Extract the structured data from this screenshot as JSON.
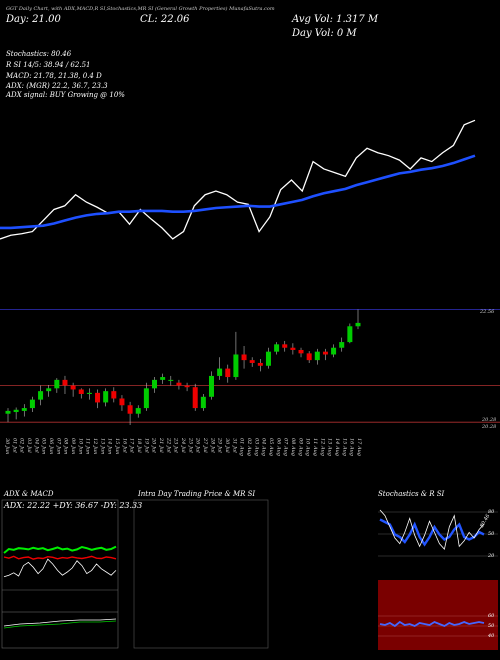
{
  "header": {
    "ticker_line": "GGT Daily Chart, with ADX,MACD,R  SI,Stochastics,MR  SI (General Growth Properties) MunafaSutra.com",
    "day_label": "Day: 21.00",
    "close_label": "CL: 22.06",
    "avg_vol": "Avg Vol: 1.317 M",
    "day_vol": "Day Vol: 0  M",
    "stochastics": "Stochastics: 80.46",
    "rsi": "R  SI 14/5: 38.94  / 62.51",
    "macd": "MACD: 21.78, 21.38, 0.4  D",
    "adx": "ADX:                  (MGR) 22.2,  36.7,  23.3",
    "adx_signal": "ADX  signal:                    BUY Growing @ 10%"
  },
  "colors": {
    "background": "#000000",
    "price_line": "#ffffff",
    "ma_line": "#1e50ff",
    "bull": "#00cc00",
    "bear": "#ee0000",
    "level_line": "#b03030",
    "blue_level": "#3030c0"
  },
  "price_panel": {
    "right_label_top": "22.56",
    "right_labels_bottom": [
      "20.28",
      "20.28"
    ]
  },
  "x_axis_dates": [
    "30 Jun",
    "01 Jul",
    "02 Jul",
    "03 Jul",
    "04 Jul",
    "05 Jun",
    "06 Jun",
    "07 Jun",
    "08 Jun",
    "09 Jun",
    "10 Jun",
    "11 Jun",
    "12 Jun",
    "13 Jun",
    "14 Jun",
    "15 Jun",
    "16 Jul",
    "17 Jul",
    "18 Jul",
    "19 Jul",
    "20 Jul",
    "21 Jul",
    "22 Jul",
    "23 Jul",
    "24 Jul",
    "25 Jul",
    "26 Jul",
    "27 Jul",
    "28 Jul",
    "29 Jul",
    "30 Jul",
    "31 Jul",
    "01 Aug",
    "02 Aug",
    "03 Aug",
    "04 Aug",
    "05 Aug",
    "06 Aug",
    "07 Aug",
    "08 Aug",
    "09 Aug",
    "10 Aug",
    "11 Aug",
    "12 Aug",
    "13 Aug",
    "14 Aug",
    "15 Aug",
    "16 Aug",
    "17 Aug"
  ],
  "panels": {
    "adx_title": "ADX  & MACD",
    "adx_values": "ADX: 22.22  +DY: 36.67  -DY: 23.33",
    "intra_title": "Intra  Day Trading Price  & MR              SI",
    "stoch_title": "Stochastics & R              SI",
    "stoch_levels": [
      "80",
      "50",
      "20"
    ],
    "rsi_levels": [
      "60",
      "50",
      "40"
    ],
    "stoch_side_text": "80.46"
  },
  "chart_data": {
    "type": "candlestick",
    "candles": [
      {
        "o": 20.45,
        "c": 20.5,
        "h": 20.55,
        "l": 20.3
      },
      {
        "o": 20.48,
        "c": 20.52,
        "h": 20.56,
        "l": 20.35
      },
      {
        "o": 20.5,
        "c": 20.55,
        "h": 20.62,
        "l": 20.4
      },
      {
        "o": 20.55,
        "c": 20.7,
        "h": 20.75,
        "l": 20.48
      },
      {
        "o": 20.7,
        "c": 20.85,
        "h": 20.95,
        "l": 20.6
      },
      {
        "o": 20.85,
        "c": 20.9,
        "h": 20.96,
        "l": 20.75
      },
      {
        "o": 20.9,
        "c": 21.05,
        "h": 21.08,
        "l": 20.82
      },
      {
        "o": 21.05,
        "c": 20.95,
        "h": 21.12,
        "l": 20.8
      },
      {
        "o": 20.95,
        "c": 20.88,
        "h": 21.0,
        "l": 20.75
      },
      {
        "o": 20.88,
        "c": 20.8,
        "h": 20.9,
        "l": 20.72
      },
      {
        "o": 20.8,
        "c": 20.82,
        "h": 20.9,
        "l": 20.7
      },
      {
        "o": 20.82,
        "c": 20.65,
        "h": 20.88,
        "l": 20.55
      },
      {
        "o": 20.65,
        "c": 20.85,
        "h": 20.9,
        "l": 20.58
      },
      {
        "o": 20.85,
        "c": 20.72,
        "h": 20.92,
        "l": 20.65
      },
      {
        "o": 20.72,
        "c": 20.6,
        "h": 20.78,
        "l": 20.5
      },
      {
        "o": 20.6,
        "c": 20.45,
        "h": 20.66,
        "l": 20.25
      },
      {
        "o": 20.45,
        "c": 20.55,
        "h": 20.6,
        "l": 20.38
      },
      {
        "o": 20.55,
        "c": 20.9,
        "h": 21.0,
        "l": 20.5
      },
      {
        "o": 20.9,
        "c": 21.05,
        "h": 21.1,
        "l": 20.82
      },
      {
        "o": 21.05,
        "c": 21.1,
        "h": 21.16,
        "l": 20.98
      },
      {
        "o": 21.05,
        "c": 21.05,
        "h": 21.12,
        "l": 20.95
      },
      {
        "o": 21.0,
        "c": 20.95,
        "h": 21.05,
        "l": 20.88
      },
      {
        "o": 20.95,
        "c": 20.92,
        "h": 21.0,
        "l": 20.85
      },
      {
        "o": 20.92,
        "c": 20.55,
        "h": 20.98,
        "l": 20.5
      },
      {
        "o": 20.55,
        "c": 20.75,
        "h": 20.8,
        "l": 20.5
      },
      {
        "o": 20.75,
        "c": 21.12,
        "h": 21.2,
        "l": 20.7
      },
      {
        "o": 21.12,
        "c": 21.25,
        "h": 21.45,
        "l": 21.05
      },
      {
        "o": 21.25,
        "c": 21.1,
        "h": 21.32,
        "l": 21.0
      },
      {
        "o": 21.1,
        "c": 21.5,
        "h": 21.9,
        "l": 21.05
      },
      {
        "o": 21.5,
        "c": 21.4,
        "h": 21.65,
        "l": 21.25
      },
      {
        "o": 21.4,
        "c": 21.35,
        "h": 21.45,
        "l": 21.28
      },
      {
        "o": 21.35,
        "c": 21.3,
        "h": 21.42,
        "l": 21.2
      },
      {
        "o": 21.3,
        "c": 21.55,
        "h": 21.62,
        "l": 21.25
      },
      {
        "o": 21.55,
        "c": 21.68,
        "h": 21.72,
        "l": 21.5
      },
      {
        "o": 21.68,
        "c": 21.62,
        "h": 21.74,
        "l": 21.55
      },
      {
        "o": 21.62,
        "c": 21.58,
        "h": 21.7,
        "l": 21.5
      },
      {
        "o": 21.58,
        "c": 21.52,
        "h": 21.62,
        "l": 21.45
      },
      {
        "o": 21.52,
        "c": 21.4,
        "h": 21.56,
        "l": 21.35
      },
      {
        "o": 21.4,
        "c": 21.55,
        "h": 21.6,
        "l": 21.32
      },
      {
        "o": 21.55,
        "c": 21.5,
        "h": 21.6,
        "l": 21.4
      },
      {
        "o": 21.5,
        "c": 21.62,
        "h": 21.68,
        "l": 21.45
      },
      {
        "o": 21.62,
        "c": 21.72,
        "h": 21.8,
        "l": 21.55
      },
      {
        "o": 21.72,
        "c": 22.0,
        "h": 22.05,
        "l": 21.7
      },
      {
        "o": 22.0,
        "c": 22.06,
        "h": 22.3,
        "l": 21.95
      }
    ],
    "price_line": [
      20.45,
      20.5,
      20.52,
      20.55,
      20.7,
      20.85,
      20.9,
      21.05,
      20.95,
      20.88,
      20.8,
      20.82,
      20.65,
      20.85,
      20.72,
      20.6,
      20.45,
      20.55,
      20.9,
      21.05,
      21.1,
      21.05,
      20.95,
      20.92,
      20.55,
      20.75,
      21.12,
      21.25,
      21.1,
      21.5,
      21.4,
      21.35,
      21.3,
      21.55,
      21.68,
      21.62,
      21.58,
      21.52,
      21.4,
      21.55,
      21.5,
      21.62,
      21.72,
      22.0,
      22.06
    ],
    "ma_line": [
      20.6,
      20.6,
      20.61,
      20.62,
      20.63,
      20.66,
      20.7,
      20.74,
      20.77,
      20.79,
      20.8,
      20.82,
      20.82,
      20.83,
      20.83,
      20.83,
      20.82,
      20.82,
      20.83,
      20.85,
      20.87,
      20.88,
      20.89,
      20.9,
      20.89,
      20.89,
      20.92,
      20.95,
      20.98,
      21.03,
      21.07,
      21.1,
      21.13,
      21.18,
      21.22,
      21.26,
      21.3,
      21.34,
      21.36,
      21.39,
      21.41,
      21.44,
      21.48,
      21.53,
      21.58
    ],
    "volume_levels": {
      "upper": 22.3,
      "mid": 20.95,
      "lower": 20.3
    }
  }
}
